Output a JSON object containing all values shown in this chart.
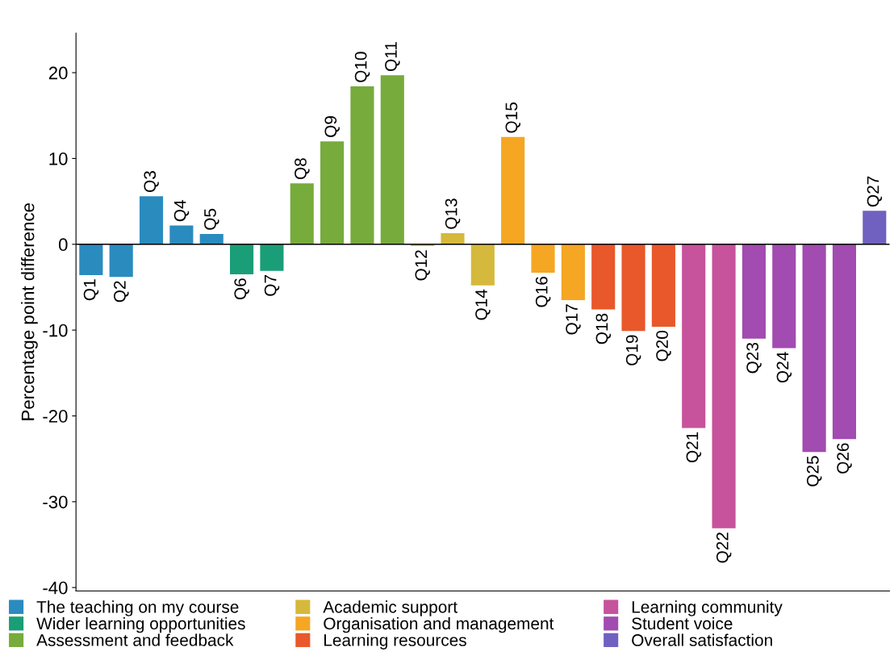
{
  "chart_data": {
    "type": "bar",
    "ylabel": "Percentage point difference",
    "categories": [
      "Q1",
      "Q2",
      "Q3",
      "Q4",
      "Q5",
      "Q6",
      "Q7",
      "Q8",
      "Q9",
      "Q10",
      "Q11",
      "Q12",
      "Q13",
      "Q14",
      "Q15",
      "Q16",
      "Q17",
      "Q18",
      "Q19",
      "Q20",
      "Q21",
      "Q22",
      "Q23",
      "Q24",
      "Q25",
      "Q26",
      "Q27"
    ],
    "series": [
      {
        "name": "The teaching on my course",
        "color": "#2a8bbf",
        "values": [
          -3.6,
          -3.8,
          5.6,
          2.2,
          1.2,
          null,
          null,
          null,
          null,
          null,
          null,
          null,
          null,
          null,
          null,
          null,
          null,
          null,
          null,
          null,
          null,
          null,
          null,
          null,
          null,
          null,
          null
        ]
      },
      {
        "name": "Wider learning opportunities",
        "color": "#1a9e77",
        "values": [
          null,
          null,
          null,
          null,
          null,
          -3.5,
          -3.1,
          null,
          null,
          null,
          null,
          null,
          null,
          null,
          null,
          null,
          null,
          null,
          null,
          null,
          null,
          null,
          null,
          null,
          null,
          null,
          null
        ]
      },
      {
        "name": "Assessment and feedback",
        "color": "#77ab3c",
        "values": [
          null,
          null,
          null,
          null,
          null,
          null,
          null,
          7.1,
          12.0,
          18.4,
          19.7,
          null,
          null,
          null,
          null,
          null,
          null,
          null,
          null,
          null,
          null,
          null,
          null,
          null,
          null,
          null,
          null
        ]
      },
      {
        "name": "Academic support",
        "color": "#d5b93c",
        "values": [
          null,
          null,
          null,
          null,
          null,
          null,
          null,
          null,
          null,
          null,
          null,
          -0.2,
          1.3,
          -4.8,
          null,
          null,
          null,
          null,
          null,
          null,
          null,
          null,
          null,
          null,
          null,
          null,
          null
        ]
      },
      {
        "name": "Organisation and management",
        "color": "#f5a623",
        "values": [
          null,
          null,
          null,
          null,
          null,
          null,
          null,
          null,
          null,
          null,
          null,
          null,
          null,
          null,
          12.5,
          -3.3,
          -6.5,
          null,
          null,
          null,
          null,
          null,
          null,
          null,
          null,
          null,
          null
        ]
      },
      {
        "name": "Learning resources",
        "color": "#e8582a",
        "values": [
          null,
          null,
          null,
          null,
          null,
          null,
          null,
          null,
          null,
          null,
          null,
          null,
          null,
          null,
          null,
          null,
          null,
          -7.6,
          -10.1,
          -9.6,
          null,
          null,
          null,
          null,
          null,
          null,
          null
        ]
      },
      {
        "name": "Learning community",
        "color": "#c6539c",
        "values": [
          null,
          null,
          null,
          null,
          null,
          null,
          null,
          null,
          null,
          null,
          null,
          null,
          null,
          null,
          null,
          null,
          null,
          null,
          null,
          null,
          -21.4,
          -33.1,
          null,
          null,
          null,
          null,
          null
        ]
      },
      {
        "name": "Student voice",
        "color": "#a24bb0",
        "values": [
          null,
          null,
          null,
          null,
          null,
          null,
          null,
          null,
          null,
          null,
          null,
          null,
          null,
          null,
          null,
          null,
          null,
          null,
          null,
          null,
          null,
          null,
          -11.0,
          -12.1,
          -24.2,
          -22.7,
          null
        ]
      },
      {
        "name": "Overall satisfaction",
        "color": "#7060c0",
        "values": [
          null,
          null,
          null,
          null,
          null,
          null,
          null,
          null,
          null,
          null,
          null,
          null,
          null,
          null,
          null,
          null,
          null,
          null,
          null,
          null,
          null,
          null,
          null,
          null,
          null,
          null,
          3.9
        ]
      }
    ],
    "ylim": [
      -40.4,
      24.6
    ],
    "yticks": [
      -40,
      -30,
      -20,
      -10,
      0,
      10,
      20
    ],
    "grid": false,
    "legend": "bottom"
  }
}
